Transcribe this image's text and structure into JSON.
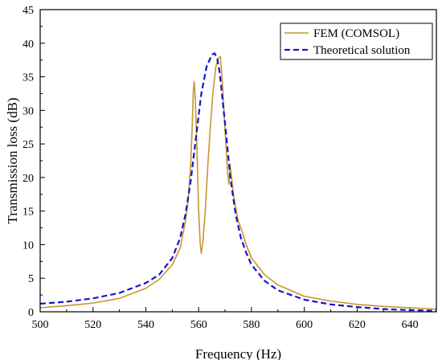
{
  "chart_data": {
    "type": "line",
    "xlabel": "Frequency (Hz)",
    "ylabel": "Transmission loss (dB)",
    "xlim": [
      500,
      650
    ],
    "ylim": [
      0,
      45
    ],
    "x_ticks": [
      "500",
      "520",
      "540",
      "560",
      "580",
      "600",
      "620",
      "640"
    ],
    "y_ticks": [
      "0",
      "5",
      "10",
      "15",
      "20",
      "25",
      "30",
      "35",
      "40",
      "45"
    ],
    "grid": false,
    "legend_position": "top-right",
    "series": [
      {
        "name": "FEM (COMSOL)",
        "color": "#C8962D",
        "dash": "solid",
        "points": [
          [
            500,
            0.6
          ],
          [
            510,
            0.9
          ],
          [
            520,
            1.3
          ],
          [
            530,
            2.0
          ],
          [
            540,
            3.5
          ],
          [
            545,
            4.8
          ],
          [
            550,
            7.0
          ],
          [
            553,
            9.5
          ],
          [
            555,
            13.5
          ],
          [
            556,
            16.5
          ],
          [
            557,
            22.0
          ],
          [
            557.5,
            27.0
          ],
          [
            558,
            33.0
          ],
          [
            558.3,
            34.3
          ],
          [
            558.7,
            32.0
          ],
          [
            559.3,
            25.0
          ],
          [
            560,
            15.0
          ],
          [
            560.6,
            10.0
          ],
          [
            561,
            8.7
          ],
          [
            561.6,
            10.5
          ],
          [
            562.5,
            15.0
          ],
          [
            563.5,
            22.0
          ],
          [
            564.5,
            28.0
          ],
          [
            565.5,
            33.0
          ],
          [
            566.5,
            36.5
          ],
          [
            567.5,
            37.8
          ],
          [
            568.2,
            38.0
          ],
          [
            569,
            34.0
          ],
          [
            570,
            27.0
          ],
          [
            571,
            20.5
          ],
          [
            571.5,
            19.0
          ],
          [
            571.9,
            22.0
          ],
          [
            572.3,
            20.5
          ],
          [
            573,
            18.0
          ],
          [
            574,
            15.5
          ],
          [
            575,
            13.5
          ],
          [
            575.5,
            13.0
          ],
          [
            576,
            12.5
          ],
          [
            578,
            10.0
          ],
          [
            580,
            8.0
          ],
          [
            585,
            5.5
          ],
          [
            590,
            4.0
          ],
          [
            600,
            2.3
          ],
          [
            610,
            1.6
          ],
          [
            620,
            1.1
          ],
          [
            630,
            0.8
          ],
          [
            640,
            0.6
          ],
          [
            650,
            0.4
          ]
        ]
      },
      {
        "name": "Theoretical solution",
        "color": "#1515D0",
        "dash": "dashed",
        "points": [
          [
            500,
            1.2
          ],
          [
            510,
            1.5
          ],
          [
            520,
            2.0
          ],
          [
            530,
            2.8
          ],
          [
            540,
            4.3
          ],
          [
            545,
            5.5
          ],
          [
            550,
            8.0
          ],
          [
            553,
            11.0
          ],
          [
            555,
            14.5
          ],
          [
            557,
            19.5
          ],
          [
            559,
            26.0
          ],
          [
            561,
            32.5
          ],
          [
            563,
            36.5
          ],
          [
            565,
            38.3
          ],
          [
            566,
            38.5
          ],
          [
            567,
            37.8
          ],
          [
            568,
            35.5
          ],
          [
            570,
            28.0
          ],
          [
            572,
            20.0
          ],
          [
            574,
            14.5
          ],
          [
            576,
            11.0
          ],
          [
            578,
            8.8
          ],
          [
            580,
            7.0
          ],
          [
            585,
            4.6
          ],
          [
            590,
            3.2
          ],
          [
            600,
            1.8
          ],
          [
            610,
            1.1
          ],
          [
            620,
            0.7
          ],
          [
            630,
            0.4
          ],
          [
            640,
            0.25
          ],
          [
            650,
            0.15
          ]
        ]
      }
    ]
  }
}
